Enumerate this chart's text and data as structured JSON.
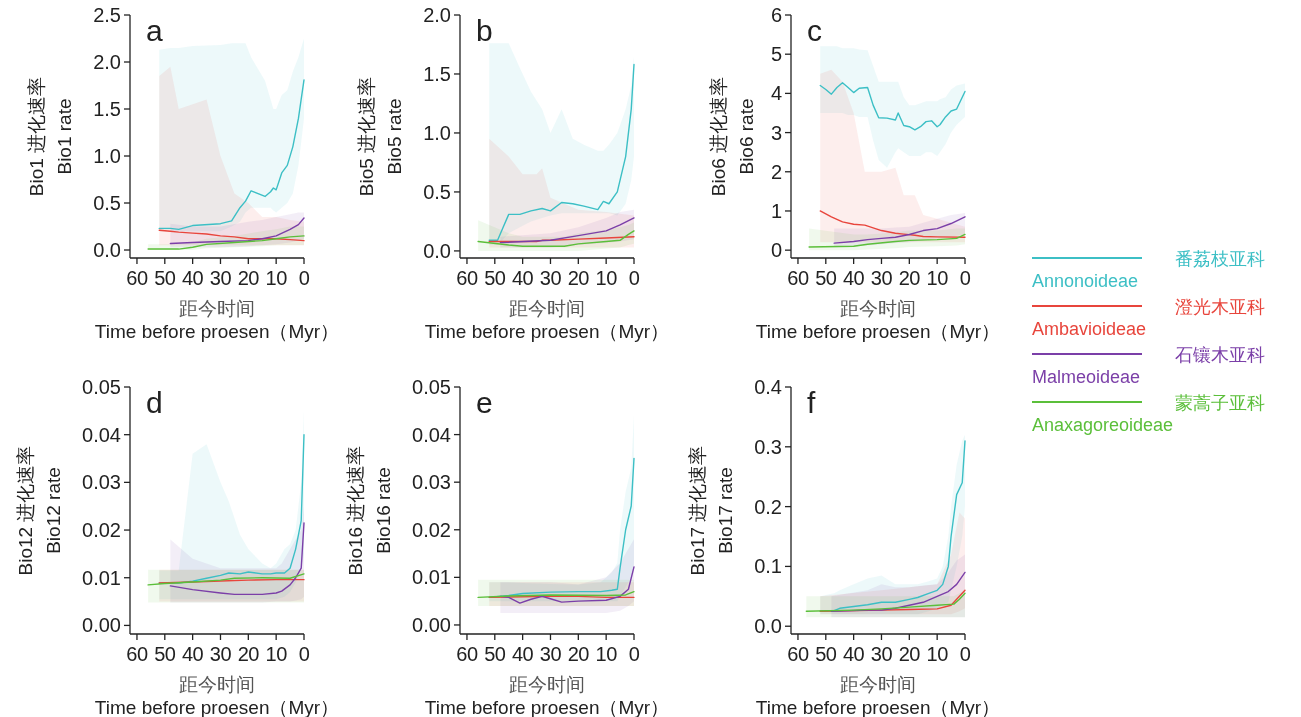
{
  "chart_data": [
    {
      "type": "line",
      "xlabel": "距今时间\nTime  before  proesen（Myr）",
      "ylabel": "Bio1  进化速率\nBio1  rate",
      "annotations": [
        "a"
      ],
      "legend": "right",
      "xlim": [
        62.5,
        0
      ],
      "xticks": [
        60,
        50,
        40,
        30,
        20,
        10,
        0
      ],
      "ylim": [
        -0.085,
        2.5
      ],
      "yticks": [
        {
          "value": 0,
          "label": "0.0"
        },
        {
          "value": 0.5,
          "label": "0.5"
        },
        {
          "value": 1,
          "label": "1.0"
        },
        {
          "value": 1.5,
          "label": "1.5"
        },
        {
          "value": 2,
          "label": "2.0"
        },
        {
          "value": 2.5,
          "label": "2.5"
        }
      ],
      "series": [
        {
          "name": "番荔枝亚科\nAnnonoideae",
          "color": "#3cbfc5",
          "x": [
            52,
            48,
            45,
            40,
            30,
            26,
            23,
            21,
            19,
            14,
            12,
            11,
            10,
            8,
            6,
            4,
            2,
            0
          ],
          "values": [
            0.23,
            0.23,
            0.22,
            0.26,
            0.28,
            0.31,
            0.45,
            0.52,
            0.63,
            0.57,
            0.62,
            0.66,
            0.64,
            0.82,
            0.9,
            1.1,
            1.4,
            1.81
          ],
          "lower": [
            0.2,
            0.2,
            0.2,
            0.2,
            0.2,
            0.25,
            0.3,
            0.4,
            0.45,
            0.45,
            0.45,
            0.42,
            0.4,
            0.45,
            0.5,
            0.6,
            0.9,
            1.4
          ],
          "upper": [
            2.13,
            2.15,
            2.15,
            2.17,
            2.18,
            2.2,
            2.2,
            2.2,
            2.05,
            1.8,
            1.6,
            1.5,
            1.5,
            1.65,
            1.7,
            1.9,
            2.05,
            2.25
          ]
        },
        {
          "name": "澄光木亚科\nAmbavioideae",
          "color": "#e8453c",
          "x": [
            52,
            48,
            45,
            40,
            35,
            30,
            25,
            20,
            15,
            10,
            5,
            0
          ],
          "values": [
            0.21,
            0.2,
            0.19,
            0.18,
            0.17,
            0.15,
            0.14,
            0.12,
            0.12,
            0.12,
            0.11,
            0.1
          ],
          "lower": [
            0.05,
            0.05,
            0.05,
            0.05,
            0.05,
            0.05,
            0.05,
            0.05,
            0.05,
            0.05,
            0.05,
            0.05
          ],
          "upper": [
            1.85,
            1.95,
            1.5,
            1.55,
            1.6,
            1.0,
            0.6,
            0.5,
            0.35,
            0.35,
            0.32,
            0.3
          ]
        },
        {
          "name": "石镶木亚科\nMalmeoideae",
          "color": "#7b3fa8",
          "x": [
            48,
            40,
            30,
            20,
            15,
            10,
            5,
            2,
            0
          ],
          "values": [
            0.07,
            0.08,
            0.09,
            0.1,
            0.12,
            0.15,
            0.22,
            0.27,
            0.34
          ],
          "lower": [
            0.03,
            0.03,
            0.03,
            0.04,
            0.05,
            0.06,
            0.08,
            0.1,
            0.12
          ],
          "upper": [
            0.28,
            0.25,
            0.25,
            0.3,
            0.32,
            0.35,
            0.38,
            0.4,
            0.4
          ]
        },
        {
          "name": "蒙蒿子亚科\nAnaxagoreoideae",
          "color": "#5bbf3a",
          "x": [
            56,
            45,
            40,
            35,
            25,
            15,
            10,
            5,
            0
          ],
          "values": [
            0.01,
            0.01,
            0.03,
            0.06,
            0.08,
            0.1,
            0.12,
            0.14,
            0.15
          ],
          "lower": [
            0,
            0,
            0,
            0.02,
            0.03,
            0.04,
            0.05,
            0.05,
            0.05
          ],
          "upper": [
            0.06,
            0.06,
            0.08,
            0.12,
            0.15,
            0.2,
            0.22,
            0.25,
            0.25
          ]
        }
      ]
    },
    {
      "type": "line",
      "xlabel": "距今时间\nTime  before  proesen（Myr）",
      "ylabel": "Bio5  进化速率\nBio5  rate",
      "annotations": [
        "b"
      ],
      "xlim": [
        62.5,
        0
      ],
      "xticks": [
        60,
        50,
        40,
        30,
        20,
        10,
        0
      ],
      "ylim": [
        -0.06,
        2
      ],
      "yticks": [
        {
          "value": 0,
          "label": "0.0"
        },
        {
          "value": 0.5,
          "label": "0.5"
        },
        {
          "value": 1,
          "label": "1.0"
        },
        {
          "value": 1.5,
          "label": "1.5"
        },
        {
          "value": 2,
          "label": "2.0"
        }
      ],
      "series": [
        {
          "color": "#3cbfc5",
          "x": [
            52,
            49,
            47,
            45,
            41,
            37,
            33,
            30,
            26,
            22,
            18,
            13,
            11,
            9,
            6,
            3,
            1,
            0
          ],
          "values": [
            0.09,
            0.09,
            0.2,
            0.31,
            0.31,
            0.34,
            0.36,
            0.34,
            0.41,
            0.4,
            0.38,
            0.35,
            0.42,
            0.4,
            0.5,
            0.8,
            1.2,
            1.58
          ],
          "lower": [
            0.05,
            0.05,
            0.1,
            0.15,
            0.2,
            0.25,
            0.28,
            0.3,
            0.32,
            0.32,
            0.32,
            0.32,
            0.32,
            0.32,
            0.3,
            0.4,
            0.6,
            0.8
          ],
          "upper": [
            1.76,
            1.76,
            1.76,
            1.76,
            1.55,
            1.35,
            1.2,
            1.0,
            1.2,
            0.95,
            0.9,
            0.85,
            0.85,
            0.9,
            1.0,
            1.2,
            1.4,
            1.65
          ]
        },
        {
          "color": "#e8453c",
          "x": [
            52,
            45,
            40,
            35,
            33,
            30,
            20,
            10,
            0
          ],
          "values": [
            0.08,
            0.08,
            0.08,
            0.08,
            0.09,
            0.09,
            0.1,
            0.11,
            0.12
          ],
          "lower": [
            0.03,
            0.03,
            0.03,
            0.03,
            0.03,
            0.03,
            0.03,
            0.03,
            0.03
          ],
          "upper": [
            0.95,
            0.8,
            0.65,
            0.65,
            0.7,
            0.45,
            0.35,
            0.33,
            0.3
          ]
        },
        {
          "color": "#7b3fa8",
          "x": [
            48,
            30,
            20,
            10,
            5,
            0
          ],
          "values": [
            0.07,
            0.09,
            0.13,
            0.17,
            0.22,
            0.28
          ],
          "lower": [
            0.03,
            0.03,
            0.05,
            0.07,
            0.08,
            0.1
          ],
          "upper": [
            0.12,
            0.15,
            0.2,
            0.28,
            0.33,
            0.35
          ]
        },
        {
          "color": "#5bbf3a",
          "x": [
            56,
            45,
            40,
            25,
            20,
            10,
            5,
            2,
            0
          ],
          "values": [
            0.08,
            0.05,
            0.04,
            0.04,
            0.06,
            0.08,
            0.09,
            0.14,
            0.17
          ],
          "lower": [
            0,
            0,
            0,
            0,
            0,
            0.02,
            0.03,
            0.05,
            0.06
          ],
          "upper": [
            0.26,
            0.15,
            0.12,
            0.12,
            0.15,
            0.18,
            0.2,
            0.22,
            0.24
          ]
        }
      ]
    },
    {
      "type": "line",
      "xlabel": "距今时间\nTime  before  proesen（Myr）",
      "ylabel": "Bio6  进化速率\nBio6  rate",
      "annotations": [
        "c"
      ],
      "xlim": [
        62.5,
        0
      ],
      "xticks": [
        60,
        50,
        40,
        30,
        20,
        10,
        0
      ],
      "ylim": [
        -0.2,
        6
      ],
      "yticks": [
        0,
        1,
        2,
        3,
        4,
        5,
        6
      ],
      "series": [
        {
          "color": "#3cbfc5",
          "x": [
            52,
            50,
            48,
            46,
            44,
            42,
            40,
            38,
            35,
            33,
            31,
            28,
            25,
            24,
            22,
            20,
            18,
            16,
            14,
            12,
            10,
            9,
            7,
            5,
            3,
            0
          ],
          "values": [
            4.2,
            4.1,
            3.98,
            4.15,
            4.27,
            4.15,
            4.02,
            4.13,
            4.15,
            3.7,
            3.38,
            3.37,
            3.32,
            3.5,
            3.18,
            3.15,
            3.07,
            3.15,
            3.28,
            3.3,
            3.15,
            3.2,
            3.4,
            3.55,
            3.6,
            4.05
          ],
          "lower": [
            3.5,
            3.5,
            3.5,
            3.5,
            3.5,
            3.45,
            3.45,
            3.4,
            3.4,
            2.8,
            2.3,
            2.1,
            2.5,
            2.6,
            2.5,
            2.4,
            2.4,
            2.4,
            2.5,
            2.5,
            2.4,
            2.5,
            2.7,
            3.0,
            3.2,
            3.4
          ],
          "upper": [
            5.2,
            5.2,
            5.2,
            5.2,
            5.15,
            5.15,
            5.15,
            5.12,
            5.1,
            4.7,
            4.3,
            4.3,
            4.3,
            4.3,
            3.9,
            3.7,
            3.7,
            3.75,
            3.8,
            3.8,
            3.8,
            3.85,
            3.9,
            4.1,
            4.2,
            4.25
          ]
        },
        {
          "color": "#e8453c",
          "x": [
            52,
            48,
            44,
            40,
            36,
            30,
            25,
            22,
            18,
            15,
            10,
            0
          ],
          "values": [
            1.0,
            0.85,
            0.72,
            0.66,
            0.64,
            0.5,
            0.43,
            0.41,
            0.38,
            0.35,
            0.34,
            0.33
          ],
          "lower": [
            0.2,
            0.2,
            0.2,
            0.2,
            0.2,
            0.2,
            0.2,
            0.2,
            0.2,
            0.2,
            0.2,
            0.2
          ],
          "upper": [
            4.5,
            4.6,
            4.3,
            3.5,
            2.0,
            2.0,
            2.1,
            1.4,
            1.4,
            0.9,
            0.8,
            0.6
          ]
        },
        {
          "color": "#7b3fa8",
          "x": [
            47,
            40,
            35,
            30,
            25,
            20,
            15,
            10,
            5,
            0
          ],
          "values": [
            0.18,
            0.22,
            0.27,
            0.3,
            0.33,
            0.4,
            0.5,
            0.55,
            0.68,
            0.85
          ],
          "lower": [
            0.1,
            0.1,
            0.12,
            0.15,
            0.18,
            0.2,
            0.25,
            0.3,
            0.35,
            0.4
          ],
          "upper": [
            0.55,
            0.55,
            0.55,
            0.55,
            0.58,
            0.6,
            0.7,
            0.8,
            0.9,
            0.95
          ]
        },
        {
          "color": "#5bbf3a",
          "x": [
            56,
            40,
            35,
            25,
            20,
            10,
            3,
            0
          ],
          "values": [
            0.08,
            0.1,
            0.15,
            0.22,
            0.25,
            0.27,
            0.3,
            0.4
          ],
          "lower": [
            0,
            0,
            0.02,
            0.05,
            0.08,
            0.1,
            0.12,
            0.15
          ],
          "upper": [
            0.55,
            0.4,
            0.4,
            0.45,
            0.5,
            0.5,
            0.55,
            0.55
          ]
        }
      ]
    },
    {
      "type": "line",
      "xlabel": "距今时间\nTime  before  proesen（Myr）",
      "ylabel": "Bio12  进化速率\nBio12  rate",
      "annotations": [
        "d"
      ],
      "xlim": [
        62.5,
        0
      ],
      "xticks": [
        60,
        50,
        40,
        30,
        20,
        10,
        0
      ],
      "ylim": [
        -0.0018,
        0.05
      ],
      "yticks": [
        {
          "value": 0,
          "label": "0.00"
        },
        {
          "value": 0.01,
          "label": "0.01"
        },
        {
          "value": 0.02,
          "label": "0.02"
        },
        {
          "value": 0.03,
          "label": "0.03"
        },
        {
          "value": 0.04,
          "label": "0.04"
        },
        {
          "value": 0.05,
          "label": "0.05"
        }
      ],
      "series": [
        {
          "color": "#3cbfc5",
          "x": [
            52,
            45,
            40,
            35,
            30,
            27,
            23,
            20,
            15,
            12,
            10,
            7,
            5,
            3,
            1,
            0
          ],
          "values": [
            0.0089,
            0.0089,
            0.0093,
            0.0099,
            0.0105,
            0.011,
            0.0108,
            0.0112,
            0.0108,
            0.0108,
            0.011,
            0.011,
            0.012,
            0.016,
            0.022,
            0.04
          ],
          "lower": [
            0.0055,
            0.0055,
            0.0055,
            0.0055,
            0.0055,
            0.0055,
            0.0055,
            0.0055,
            0.0055,
            0.0055,
            0.0055,
            0.006,
            0.007,
            0.009,
            0.012,
            0.015
          ],
          "upper": [
            0.0115,
            0.0115,
            0.036,
            0.038,
            0.03,
            0.026,
            0.019,
            0.016,
            0.013,
            0.012,
            0.013,
            0.016,
            0.017,
            0.02,
            0.03,
            0.045
          ]
        },
        {
          "color": "#e8453c",
          "x": [
            52,
            40,
            30,
            20,
            10,
            0
          ],
          "values": [
            0.0089,
            0.0091,
            0.0093,
            0.0095,
            0.0096,
            0.0096
          ],
          "lower": [
            0.005,
            0.005,
            0.005,
            0.005,
            0.005,
            0.005
          ],
          "upper": [
            0.0117,
            0.0117,
            0.0117,
            0.0117,
            0.0117,
            0.0117
          ]
        },
        {
          "color": "#7b3fa8",
          "x": [
            48,
            40,
            30,
            25,
            15,
            10,
            8,
            5,
            3,
            1,
            0
          ],
          "values": [
            0.0083,
            0.0075,
            0.0068,
            0.0065,
            0.0065,
            0.0068,
            0.0072,
            0.0085,
            0.01,
            0.012,
            0.0215
          ],
          "lower": [
            0.0048,
            0.0048,
            0.0048,
            0.0048,
            0.0048,
            0.005,
            0.005,
            0.005,
            0.0052,
            0.0055,
            0.006
          ],
          "upper": [
            0.018,
            0.014,
            0.012,
            0.012,
            0.012,
            0.012,
            0.013,
            0.016,
            0.018,
            0.02,
            0.025
          ]
        },
        {
          "color": "#5bbf3a",
          "x": [
            56,
            50,
            40,
            30,
            25,
            15,
            5,
            0
          ],
          "values": [
            0.0085,
            0.0088,
            0.0091,
            0.0095,
            0.0099,
            0.01,
            0.0099,
            0.0108
          ],
          "lower": [
            0.0048,
            0.0048,
            0.0048,
            0.0048,
            0.0048,
            0.0048,
            0.0048,
            0.0048
          ],
          "upper": [
            0.0117,
            0.0117,
            0.0117,
            0.0117,
            0.0117,
            0.0117,
            0.0117,
            0.0117
          ]
        }
      ]
    },
    {
      "type": "line",
      "xlabel": "距今时间\nTime  before  proesen（Myr）",
      "ylabel": "Bio16  进化速率\nBio16  rate",
      "annotations": [
        "e"
      ],
      "xlim": [
        62.5,
        0
      ],
      "xticks": [
        60,
        50,
        40,
        30,
        20,
        10,
        0
      ],
      "ylim": [
        -0.0019,
        0.05
      ],
      "yticks": [
        {
          "value": 0,
          "label": "0.00"
        },
        {
          "value": 0.01,
          "label": "0.01"
        },
        {
          "value": 0.02,
          "label": "0.02"
        },
        {
          "value": 0.03,
          "label": "0.03"
        },
        {
          "value": 0.04,
          "label": "0.04"
        },
        {
          "value": 0.05,
          "label": "0.05"
        }
      ],
      "series": [
        {
          "color": "#3cbfc5",
          "x": [
            52,
            45,
            40,
            30,
            20,
            12,
            8,
            6,
            5,
            3,
            1,
            0
          ],
          "values": [
            0.0058,
            0.0062,
            0.0066,
            0.0069,
            0.007,
            0.007,
            0.0073,
            0.0075,
            0.012,
            0.02,
            0.025,
            0.035
          ],
          "lower": [
            0.005,
            0.005,
            0.005,
            0.005,
            0.005,
            0.005,
            0.005,
            0.005,
            0.006,
            0.008,
            0.01,
            0.012
          ],
          "upper": [
            0.009,
            0.009,
            0.0088,
            0.0086,
            0.0085,
            0.009,
            0.011,
            0.013,
            0.02,
            0.028,
            0.033,
            0.044
          ]
        },
        {
          "color": "#e8453c",
          "x": [
            52,
            30,
            20,
            10,
            0
          ],
          "values": [
            0.0058,
            0.006,
            0.006,
            0.0058,
            0.0058
          ],
          "lower": [
            0.004,
            0.004,
            0.004,
            0.004,
            0.004
          ],
          "upper": [
            0.009,
            0.009,
            0.009,
            0.009,
            0.009
          ]
        },
        {
          "color": "#7b3fa8",
          "x": [
            48,
            45,
            41,
            37,
            33,
            30,
            26,
            20,
            10,
            5,
            2,
            0
          ],
          "values": [
            0.006,
            0.0058,
            0.0046,
            0.0054,
            0.006,
            0.0055,
            0.0048,
            0.005,
            0.0052,
            0.006,
            0.0075,
            0.0122
          ],
          "lower": [
            0.0025,
            0.0025,
            0.0025,
            0.0025,
            0.0025,
            0.0025,
            0.0025,
            0.0025,
            0.0025,
            0.003,
            0.004,
            0.005
          ],
          "upper": [
            0.009,
            0.009,
            0.009,
            0.009,
            0.009,
            0.009,
            0.0088,
            0.0085,
            0.01,
            0.013,
            0.016,
            0.018
          ]
        },
        {
          "color": "#5bbf3a",
          "x": [
            56,
            45,
            30,
            10,
            3,
            0
          ],
          "values": [
            0.0058,
            0.0061,
            0.0063,
            0.0062,
            0.0063,
            0.007
          ],
          "lower": [
            0.004,
            0.004,
            0.004,
            0.004,
            0.004,
            0.004
          ],
          "upper": [
            0.0095,
            0.0095,
            0.0095,
            0.0095,
            0.0095,
            0.0095
          ]
        }
      ]
    },
    {
      "type": "line",
      "xlabel": "距今时间\nTime  before  proesen（Myr）",
      "ylabel": "Bio17  进化速率\nBio17  rate",
      "annotations": [
        "f"
      ],
      "xlim": [
        62.5,
        0
      ],
      "xticks": [
        60,
        50,
        40,
        30,
        20,
        10,
        0
      ],
      "ylim": [
        -0.013,
        0.4
      ],
      "yticks": [
        {
          "value": 0,
          "label": "0.0"
        },
        {
          "value": 0.1,
          "label": "0.1"
        },
        {
          "value": 0.2,
          "label": "0.2"
        },
        {
          "value": 0.3,
          "label": "0.3"
        },
        {
          "value": 0.4,
          "label": "0.4"
        }
      ],
      "series": [
        {
          "color": "#3cbfc5",
          "x": [
            52,
            47,
            45,
            40,
            35,
            30,
            25,
            20,
            17,
            13,
            10,
            8,
            6,
            5,
            3,
            1,
            0
          ],
          "values": [
            0.025,
            0.026,
            0.03,
            0.033,
            0.036,
            0.04,
            0.04,
            0.045,
            0.048,
            0.055,
            0.06,
            0.07,
            0.1,
            0.15,
            0.22,
            0.24,
            0.31
          ],
          "lower": [
            0.02,
            0.02,
            0.02,
            0.02,
            0.02,
            0.02,
            0.02,
            0.02,
            0.02,
            0.025,
            0.03,
            0.035,
            0.04,
            0.06,
            0.1,
            0.15,
            0.2
          ],
          "upper": [
            0.05,
            0.055,
            0.06,
            0.07,
            0.08,
            0.085,
            0.07,
            0.07,
            0.07,
            0.075,
            0.08,
            0.1,
            0.15,
            0.2,
            0.27,
            0.31,
            0.32
          ]
        },
        {
          "color": "#e8453c",
          "x": [
            52,
            30,
            20,
            10,
            5,
            2,
            0
          ],
          "values": [
            0.025,
            0.027,
            0.028,
            0.029,
            0.035,
            0.05,
            0.06
          ],
          "lower": [
            0.02,
            0.02,
            0.02,
            0.02,
            0.02,
            0.025,
            0.03
          ],
          "upper": [
            0.05,
            0.06,
            0.065,
            0.07,
            0.12,
            0.19,
            0.18
          ]
        },
        {
          "color": "#7b3fa8",
          "x": [
            48,
            35,
            30,
            25,
            20,
            15,
            10,
            6,
            3,
            0
          ],
          "values": [
            0.025,
            0.027,
            0.027,
            0.03,
            0.035,
            0.04,
            0.05,
            0.058,
            0.07,
            0.09
          ],
          "lower": [
            0.015,
            0.015,
            0.015,
            0.015,
            0.015,
            0.015,
            0.015,
            0.015,
            0.015,
            0.015
          ],
          "upper": [
            0.05,
            0.06,
            0.07,
            0.065,
            0.065,
            0.068,
            0.07,
            0.09,
            0.11,
            0.12
          ]
        },
        {
          "color": "#5bbf3a",
          "x": [
            57,
            40,
            30,
            20,
            10,
            4,
            2,
            0
          ],
          "values": [
            0.025,
            0.027,
            0.029,
            0.032,
            0.035,
            0.037,
            0.045,
            0.055
          ],
          "lower": [
            0.015,
            0.015,
            0.015,
            0.015,
            0.015,
            0.015,
            0.015,
            0.015
          ],
          "upper": [
            0.05,
            0.05,
            0.05,
            0.05,
            0.05,
            0.05,
            0.055,
            0.06
          ]
        }
      ]
    }
  ]
}
